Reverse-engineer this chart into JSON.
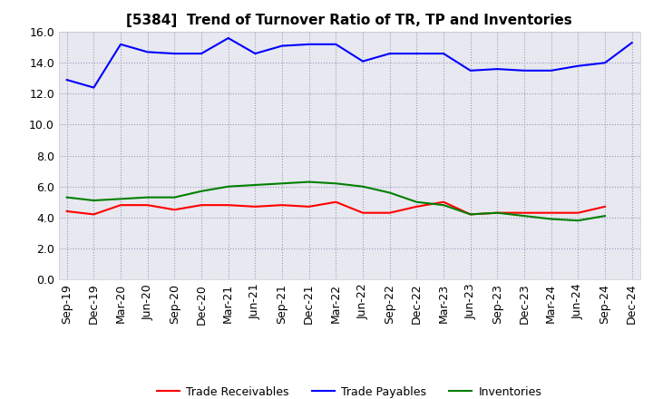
{
  "title": "[5384]  Trend of Turnover Ratio of TR, TP and Inventories",
  "labels": [
    "Sep-19",
    "Dec-19",
    "Mar-20",
    "Jun-20",
    "Sep-20",
    "Dec-20",
    "Mar-21",
    "Jun-21",
    "Sep-21",
    "Dec-21",
    "Mar-22",
    "Jun-22",
    "Sep-22",
    "Dec-22",
    "Mar-23",
    "Jun-23",
    "Sep-23",
    "Dec-23",
    "Mar-24",
    "Jun-24",
    "Sep-24",
    "Dec-24"
  ],
  "trade_receivables": [
    4.4,
    4.2,
    4.8,
    4.8,
    4.5,
    4.8,
    4.8,
    4.7,
    4.8,
    4.7,
    5.0,
    4.3,
    4.3,
    4.7,
    5.0,
    4.2,
    4.3,
    4.3,
    4.3,
    4.3,
    4.7,
    null
  ],
  "trade_payables": [
    12.9,
    12.4,
    15.2,
    14.7,
    14.6,
    14.6,
    15.6,
    14.6,
    15.1,
    15.2,
    15.2,
    14.1,
    14.6,
    14.6,
    14.6,
    13.5,
    13.6,
    13.5,
    13.5,
    13.8,
    14.0,
    15.3
  ],
  "inventories": [
    5.3,
    5.1,
    5.2,
    5.3,
    5.3,
    5.7,
    6.0,
    6.1,
    6.2,
    6.3,
    6.2,
    6.0,
    5.6,
    5.0,
    4.8,
    4.2,
    4.3,
    4.1,
    3.9,
    3.8,
    4.1,
    null
  ],
  "ylim": [
    0.0,
    16.0
  ],
  "yticks": [
    0.0,
    2.0,
    4.0,
    6.0,
    8.0,
    10.0,
    12.0,
    14.0,
    16.0
  ],
  "color_tr": "#ff0000",
  "color_tp": "#0000ff",
  "color_inv": "#008000",
  "background_color": "#ffffff",
  "plot_bg_color": "#e8e8f0",
  "grid_color": "#9999bb",
  "title_fontsize": 11,
  "tick_fontsize": 9,
  "legend_labels": [
    "Trade Receivables",
    "Trade Payables",
    "Inventories"
  ],
  "linewidth": 1.5
}
